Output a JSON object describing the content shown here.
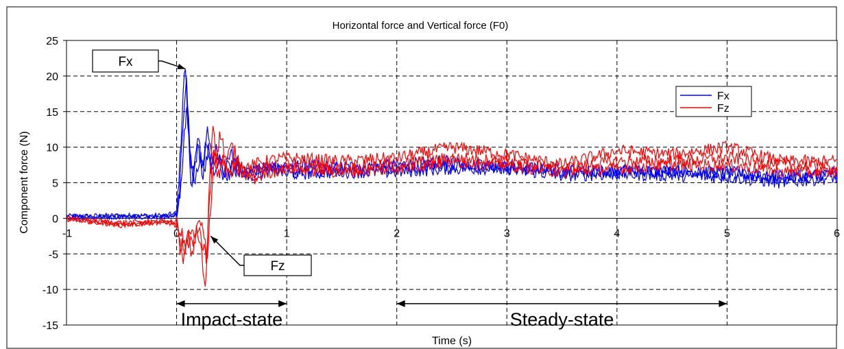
{
  "chart_data": {
    "type": "line",
    "title": "Horizontal force and Vertical force (F0)",
    "xlabel": "Time (s)",
    "ylabel": "Component force (N)",
    "xlim": [
      -1,
      6
    ],
    "ylim": [
      -15,
      25
    ],
    "x_ticks": [
      "-1",
      "0",
      "1",
      "2",
      "3",
      "4",
      "5",
      "6"
    ],
    "y_ticks": [
      "25",
      "20",
      "15",
      "10",
      "5",
      "0",
      "-5",
      "-10",
      "-15"
    ],
    "grid": true,
    "legend_position": "top-right",
    "series": [
      {
        "name": "Fx",
        "color": "#0000ff",
        "traces": [
          [
            [
              -1,
              0.3
            ],
            [
              -0.5,
              0.4
            ],
            [
              -0.1,
              0.4
            ],
            [
              0,
              0.8
            ],
            [
              0.03,
              8
            ],
            [
              0.06,
              18
            ],
            [
              0.08,
              21.4
            ],
            [
              0.1,
              14
            ],
            [
              0.13,
              5
            ],
            [
              0.16,
              7
            ],
            [
              0.2,
              11
            ],
            [
              0.24,
              6
            ],
            [
              0.28,
              12.5
            ],
            [
              0.32,
              8
            ],
            [
              0.36,
              10
            ],
            [
              0.42,
              6
            ],
            [
              0.5,
              9
            ],
            [
              0.6,
              6.5
            ],
            [
              0.8,
              7
            ],
            [
              1,
              7.5
            ],
            [
              1.5,
              7.2
            ],
            [
              2,
              7.5
            ],
            [
              2.5,
              8
            ],
            [
              3,
              7
            ],
            [
              3.5,
              6.5
            ],
            [
              4,
              6.8
            ],
            [
              4.5,
              6.5
            ],
            [
              5,
              6.2
            ],
            [
              5.5,
              6
            ],
            [
              6,
              6
            ]
          ],
          [
            [
              -1,
              0.1
            ],
            [
              -0.5,
              0.2
            ],
            [
              -0.1,
              0.3
            ],
            [
              0,
              0.5
            ],
            [
              0.03,
              5
            ],
            [
              0.06,
              14
            ],
            [
              0.09,
              19
            ],
            [
              0.12,
              10
            ],
            [
              0.15,
              6
            ],
            [
              0.19,
              10
            ],
            [
              0.23,
              7
            ],
            [
              0.27,
              11
            ],
            [
              0.31,
              7
            ],
            [
              0.36,
              9
            ],
            [
              0.43,
              6.5
            ],
            [
              0.52,
              8
            ],
            [
              0.65,
              6
            ],
            [
              0.8,
              7.5
            ],
            [
              1,
              6.5
            ],
            [
              1.5,
              6.8
            ],
            [
              2,
              7
            ],
            [
              2.5,
              7.5
            ],
            [
              3,
              7.3
            ],
            [
              3.5,
              6.8
            ],
            [
              4,
              6.5
            ],
            [
              4.5,
              6.8
            ],
            [
              5,
              6.5
            ],
            [
              5.5,
              5.5
            ],
            [
              6,
              6.5
            ]
          ],
          [
            [
              -1,
              0.2
            ],
            [
              -0.5,
              0.3
            ],
            [
              -0.1,
              0.2
            ],
            [
              0,
              0.6
            ],
            [
              0.04,
              4
            ],
            [
              0.07,
              12
            ],
            [
              0.1,
              16
            ],
            [
              0.13,
              8
            ],
            [
              0.17,
              5
            ],
            [
              0.21,
              9
            ],
            [
              0.25,
              6
            ],
            [
              0.29,
              10
            ],
            [
              0.33,
              6.5
            ],
            [
              0.38,
              8.5
            ],
            [
              0.45,
              6
            ],
            [
              0.55,
              7
            ],
            [
              0.7,
              6
            ],
            [
              0.9,
              7
            ],
            [
              1,
              6.2
            ],
            [
              1.5,
              6.5
            ],
            [
              2,
              6.5
            ],
            [
              2.5,
              7
            ],
            [
              3,
              7
            ],
            [
              3.5,
              6
            ],
            [
              4,
              6.2
            ],
            [
              4.5,
              6
            ],
            [
              5,
              5.8
            ],
            [
              5.5,
              5
            ],
            [
              6,
              5.8
            ]
          ]
        ]
      },
      {
        "name": "Fz",
        "color": "#ff0000",
        "traces": [
          [
            [
              -1,
              0
            ],
            [
              -0.5,
              -1
            ],
            [
              -0.1,
              -0.5
            ],
            [
              0,
              -1
            ],
            [
              0.03,
              -4
            ],
            [
              0.06,
              -6.5
            ],
            [
              0.1,
              -3
            ],
            [
              0.14,
              -5
            ],
            [
              0.18,
              -2
            ],
            [
              0.22,
              -4
            ],
            [
              0.26,
              -10.5
            ],
            [
              0.28,
              -4
            ],
            [
              0.3,
              6
            ],
            [
              0.33,
              13.5
            ],
            [
              0.36,
              9
            ],
            [
              0.4,
              12
            ],
            [
              0.45,
              8
            ],
            [
              0.5,
              10
            ],
            [
              0.6,
              7
            ],
            [
              0.8,
              8
            ],
            [
              1,
              8.5
            ],
            [
              1.5,
              8
            ],
            [
              2,
              8.5
            ],
            [
              2.5,
              10
            ],
            [
              3,
              9
            ],
            [
              3.5,
              7.5
            ],
            [
              4,
              9.5
            ],
            [
              4.5,
              9
            ],
            [
              5,
              10
            ],
            [
              5.5,
              8
            ],
            [
              6,
              8
            ]
          ],
          [
            [
              -1,
              -0.2
            ],
            [
              -0.5,
              -0.8
            ],
            [
              -0.1,
              -0.6
            ],
            [
              0,
              -0.8
            ],
            [
              0.03,
              -3
            ],
            [
              0.07,
              -5
            ],
            [
              0.11,
              -2
            ],
            [
              0.15,
              -4
            ],
            [
              0.19,
              -1
            ],
            [
              0.23,
              -3
            ],
            [
              0.27,
              -6
            ],
            [
              0.3,
              3
            ],
            [
              0.33,
              10
            ],
            [
              0.37,
              7
            ],
            [
              0.41,
              9
            ],
            [
              0.46,
              6.5
            ],
            [
              0.52,
              8
            ],
            [
              0.65,
              6
            ],
            [
              0.8,
              7
            ],
            [
              1,
              7.5
            ],
            [
              1.5,
              7
            ],
            [
              2,
              7.5
            ],
            [
              2.5,
              8.5
            ],
            [
              3,
              8
            ],
            [
              3.5,
              7
            ],
            [
              4,
              8
            ],
            [
              4.5,
              8
            ],
            [
              5,
              8.5
            ],
            [
              5.5,
              7.5
            ],
            [
              6,
              7
            ]
          ],
          [
            [
              -1,
              -0.1
            ],
            [
              -0.5,
              -0.6
            ],
            [
              -0.1,
              -0.4
            ],
            [
              0,
              -0.6
            ],
            [
              0.04,
              -2
            ],
            [
              0.08,
              -4
            ],
            [
              0.12,
              -1.5
            ],
            [
              0.16,
              -3
            ],
            [
              0.2,
              -0.5
            ],
            [
              0.24,
              -2
            ],
            [
              0.28,
              -5
            ],
            [
              0.31,
              2
            ],
            [
              0.34,
              8
            ],
            [
              0.38,
              6
            ],
            [
              0.42,
              8
            ],
            [
              0.47,
              6
            ],
            [
              0.54,
              7
            ],
            [
              0.7,
              5.5
            ],
            [
              0.85,
              6.5
            ],
            [
              1,
              7
            ],
            [
              1.5,
              6.5
            ],
            [
              2,
              7
            ],
            [
              2.5,
              8
            ],
            [
              3,
              7.5
            ],
            [
              3.5,
              6.5
            ],
            [
              4,
              7
            ],
            [
              4.5,
              7.5
            ],
            [
              5,
              7.5
            ],
            [
              5.5,
              6.5
            ],
            [
              6,
              6.5
            ]
          ]
        ]
      }
    ],
    "legend": {
      "items": [
        "Fx",
        "Fz"
      ]
    },
    "annotations": {
      "fx_callout": {
        "text": "Fx",
        "arrow_to": [
          0.08,
          21
        ]
      },
      "fz_callout": {
        "text": "Fz",
        "arrow_to": [
          0.31,
          -2.5
        ]
      },
      "impact_range": {
        "label": "Impact-state",
        "from": 0,
        "to": 1,
        "y": -12
      },
      "steady_range": {
        "label": "Steady-state",
        "from": 2,
        "to": 5,
        "y": -12
      }
    }
  }
}
